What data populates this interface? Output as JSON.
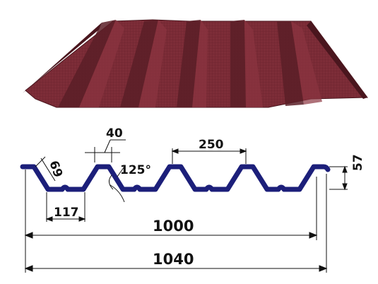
{
  "colors": {
    "sheet_face": "#7a2b36",
    "sheet_face_light": "#8b3440",
    "sheet_shadow": "#5a1e27",
    "sheet_edge": "#4a161e",
    "profile_line": "#1c1f7a",
    "dim_line": "#111111"
  },
  "dimensions": {
    "rib_height": "57",
    "pitch": "250",
    "crest_width": "40",
    "slope_length": "69",
    "valley_width": "117",
    "angle": "125°",
    "effective_width": "1000",
    "overall_width": "1040"
  }
}
